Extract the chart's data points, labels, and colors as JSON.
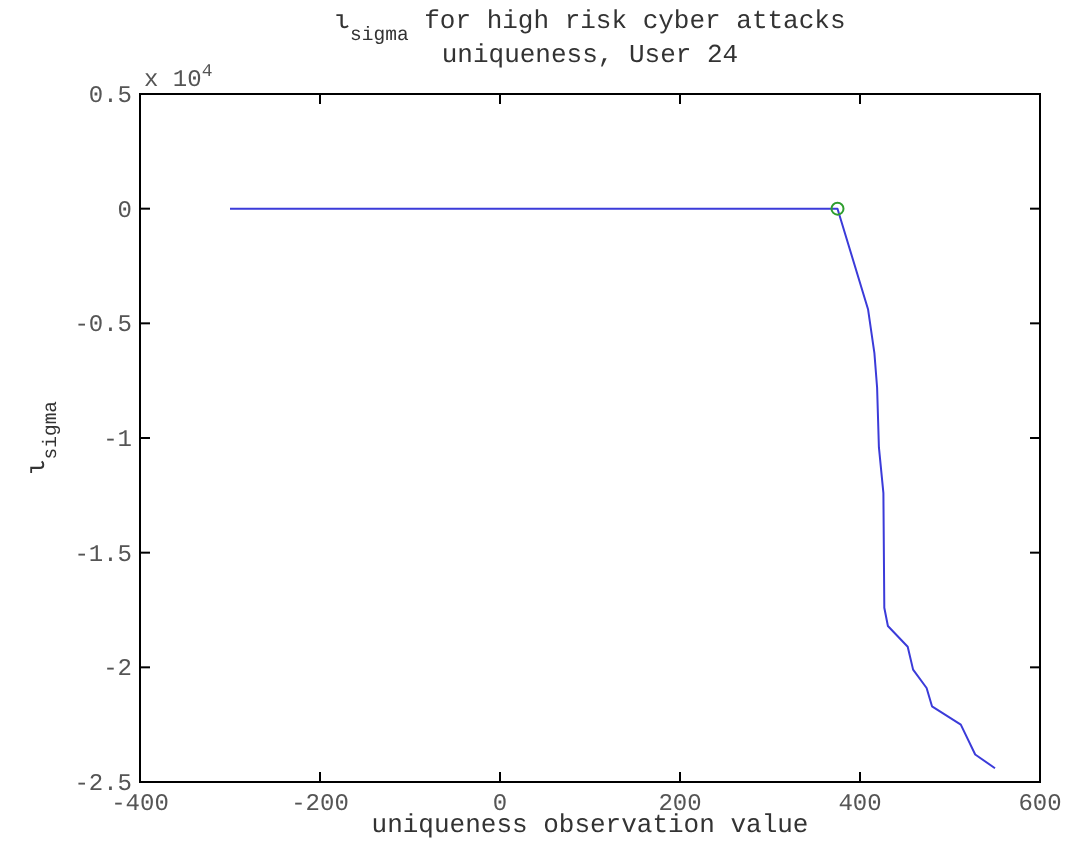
{
  "chart_data": {
    "type": "line",
    "title": "ι$_{sigma}$ for high risk cyber attacks",
    "subtitle": "uniqueness, User 24",
    "xlabel": "uniqueness observation value",
    "ylabel": "ι$_{sigma}$",
    "annotations": [
      "x 10$^{4}$"
    ],
    "series": [
      {
        "color": "#3b3bd9",
        "marker": "none",
        "x": [
          -300,
          375,
          409,
          416,
          419,
          421,
          426,
          427,
          431,
          453,
          459,
          474,
          480,
          512,
          528,
          550
        ],
        "values": [
          0,
          0,
          -0.44,
          -0.63,
          -0.78,
          -1.04,
          -1.24,
          -1.74,
          -1.82,
          -1.91,
          -2.01,
          -2.09,
          -2.17,
          -2.25,
          -2.38,
          -2.44
        ]
      },
      {
        "type": "scatter",
        "color": "#2e9e2e",
        "marker": "circle",
        "x": [
          375
        ],
        "values": [
          0
        ]
      }
    ],
    "xlim": [
      -400,
      600
    ],
    "xticks": [
      -400,
      -200,
      0,
      200,
      400,
      600
    ],
    "ylim": [
      -2.5,
      0.5
    ],
    "yticks": [
      -2.5,
      -2,
      -1.5,
      -1,
      -0.5,
      0,
      0.5
    ],
    "grid": false
  }
}
